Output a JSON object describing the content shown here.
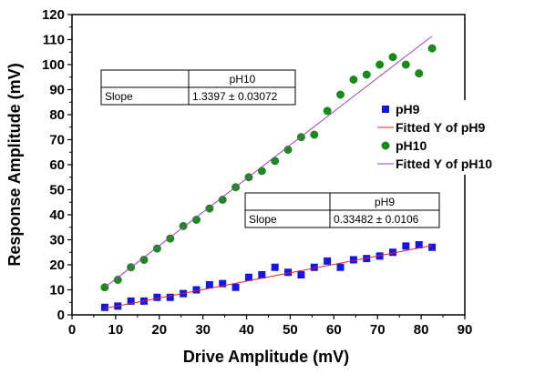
{
  "chart_data": {
    "type": "scatter",
    "xlabel": "Drive Amplitude (mV)",
    "ylabel": "Response Amplitude (mV)",
    "xlim": [
      0,
      90
    ],
    "ylim": [
      0,
      120
    ],
    "x_ticks": [
      0,
      10,
      20,
      30,
      40,
      50,
      60,
      70,
      80,
      90
    ],
    "y_ticks": [
      0,
      10,
      20,
      30,
      40,
      50,
      60,
      70,
      80,
      90,
      100,
      110,
      120
    ],
    "grid": false,
    "legend_position": "right",
    "series": [
      {
        "name": "pH9",
        "kind": "scatter",
        "marker": "square",
        "color": "#1515e6",
        "x": [
          7.5,
          10.5,
          13.5,
          16.5,
          19.5,
          22.5,
          25.5,
          28.5,
          31.5,
          34.5,
          37.5,
          40.5,
          43.5,
          46.5,
          49.5,
          52.5,
          55.5,
          58.5,
          61.5,
          64.5,
          67.5,
          70.5,
          73.5,
          76.5,
          79.5,
          82.5
        ],
        "y": [
          3,
          3.5,
          5.5,
          5.5,
          7,
          7,
          8.5,
          10,
          12,
          12.5,
          11,
          15,
          16,
          19,
          17,
          16,
          19,
          21.5,
          19,
          22,
          22.5,
          23.5,
          25,
          27.5,
          28,
          27
        ]
      },
      {
        "name": "Fitted Y of pH9",
        "kind": "line",
        "color": "#e02020",
        "x": [
          7.5,
          82.5
        ],
        "y": [
          2.6,
          27.7
        ]
      },
      {
        "name": "pH10",
        "kind": "scatter",
        "marker": "circle",
        "color": "#1a8a1a",
        "x": [
          7.5,
          10.5,
          13.5,
          16.5,
          19.5,
          22.5,
          25.5,
          28.5,
          31.5,
          34.5,
          37.5,
          40.5,
          43.5,
          46.5,
          49.5,
          52.5,
          55.5,
          58.5,
          61.5,
          64.5,
          67.5,
          70.5,
          73.5,
          76.5,
          79.5,
          82.5
        ],
        "y": [
          11,
          14,
          19,
          22,
          26.5,
          30.5,
          35.5,
          38,
          42.5,
          46,
          51,
          55,
          57.5,
          61.5,
          66,
          71,
          72,
          81.5,
          88,
          94,
          96,
          100,
          103,
          100,
          96.5,
          106.5
        ]
      },
      {
        "name": "Fitted Y of pH10",
        "kind": "line",
        "color": "#a040c0",
        "x": [
          7.5,
          82.5
        ],
        "y": [
          10.9,
          111.4
        ]
      }
    ],
    "annotations": [
      {
        "id": "pH10",
        "header": "pH10",
        "row_label": "Slope",
        "row_value": "1.3397 ± 0.03072"
      },
      {
        "id": "pH9",
        "header": "pH9",
        "row_label": "Slope",
        "row_value": "0.33482 ± 0.0106"
      }
    ]
  }
}
